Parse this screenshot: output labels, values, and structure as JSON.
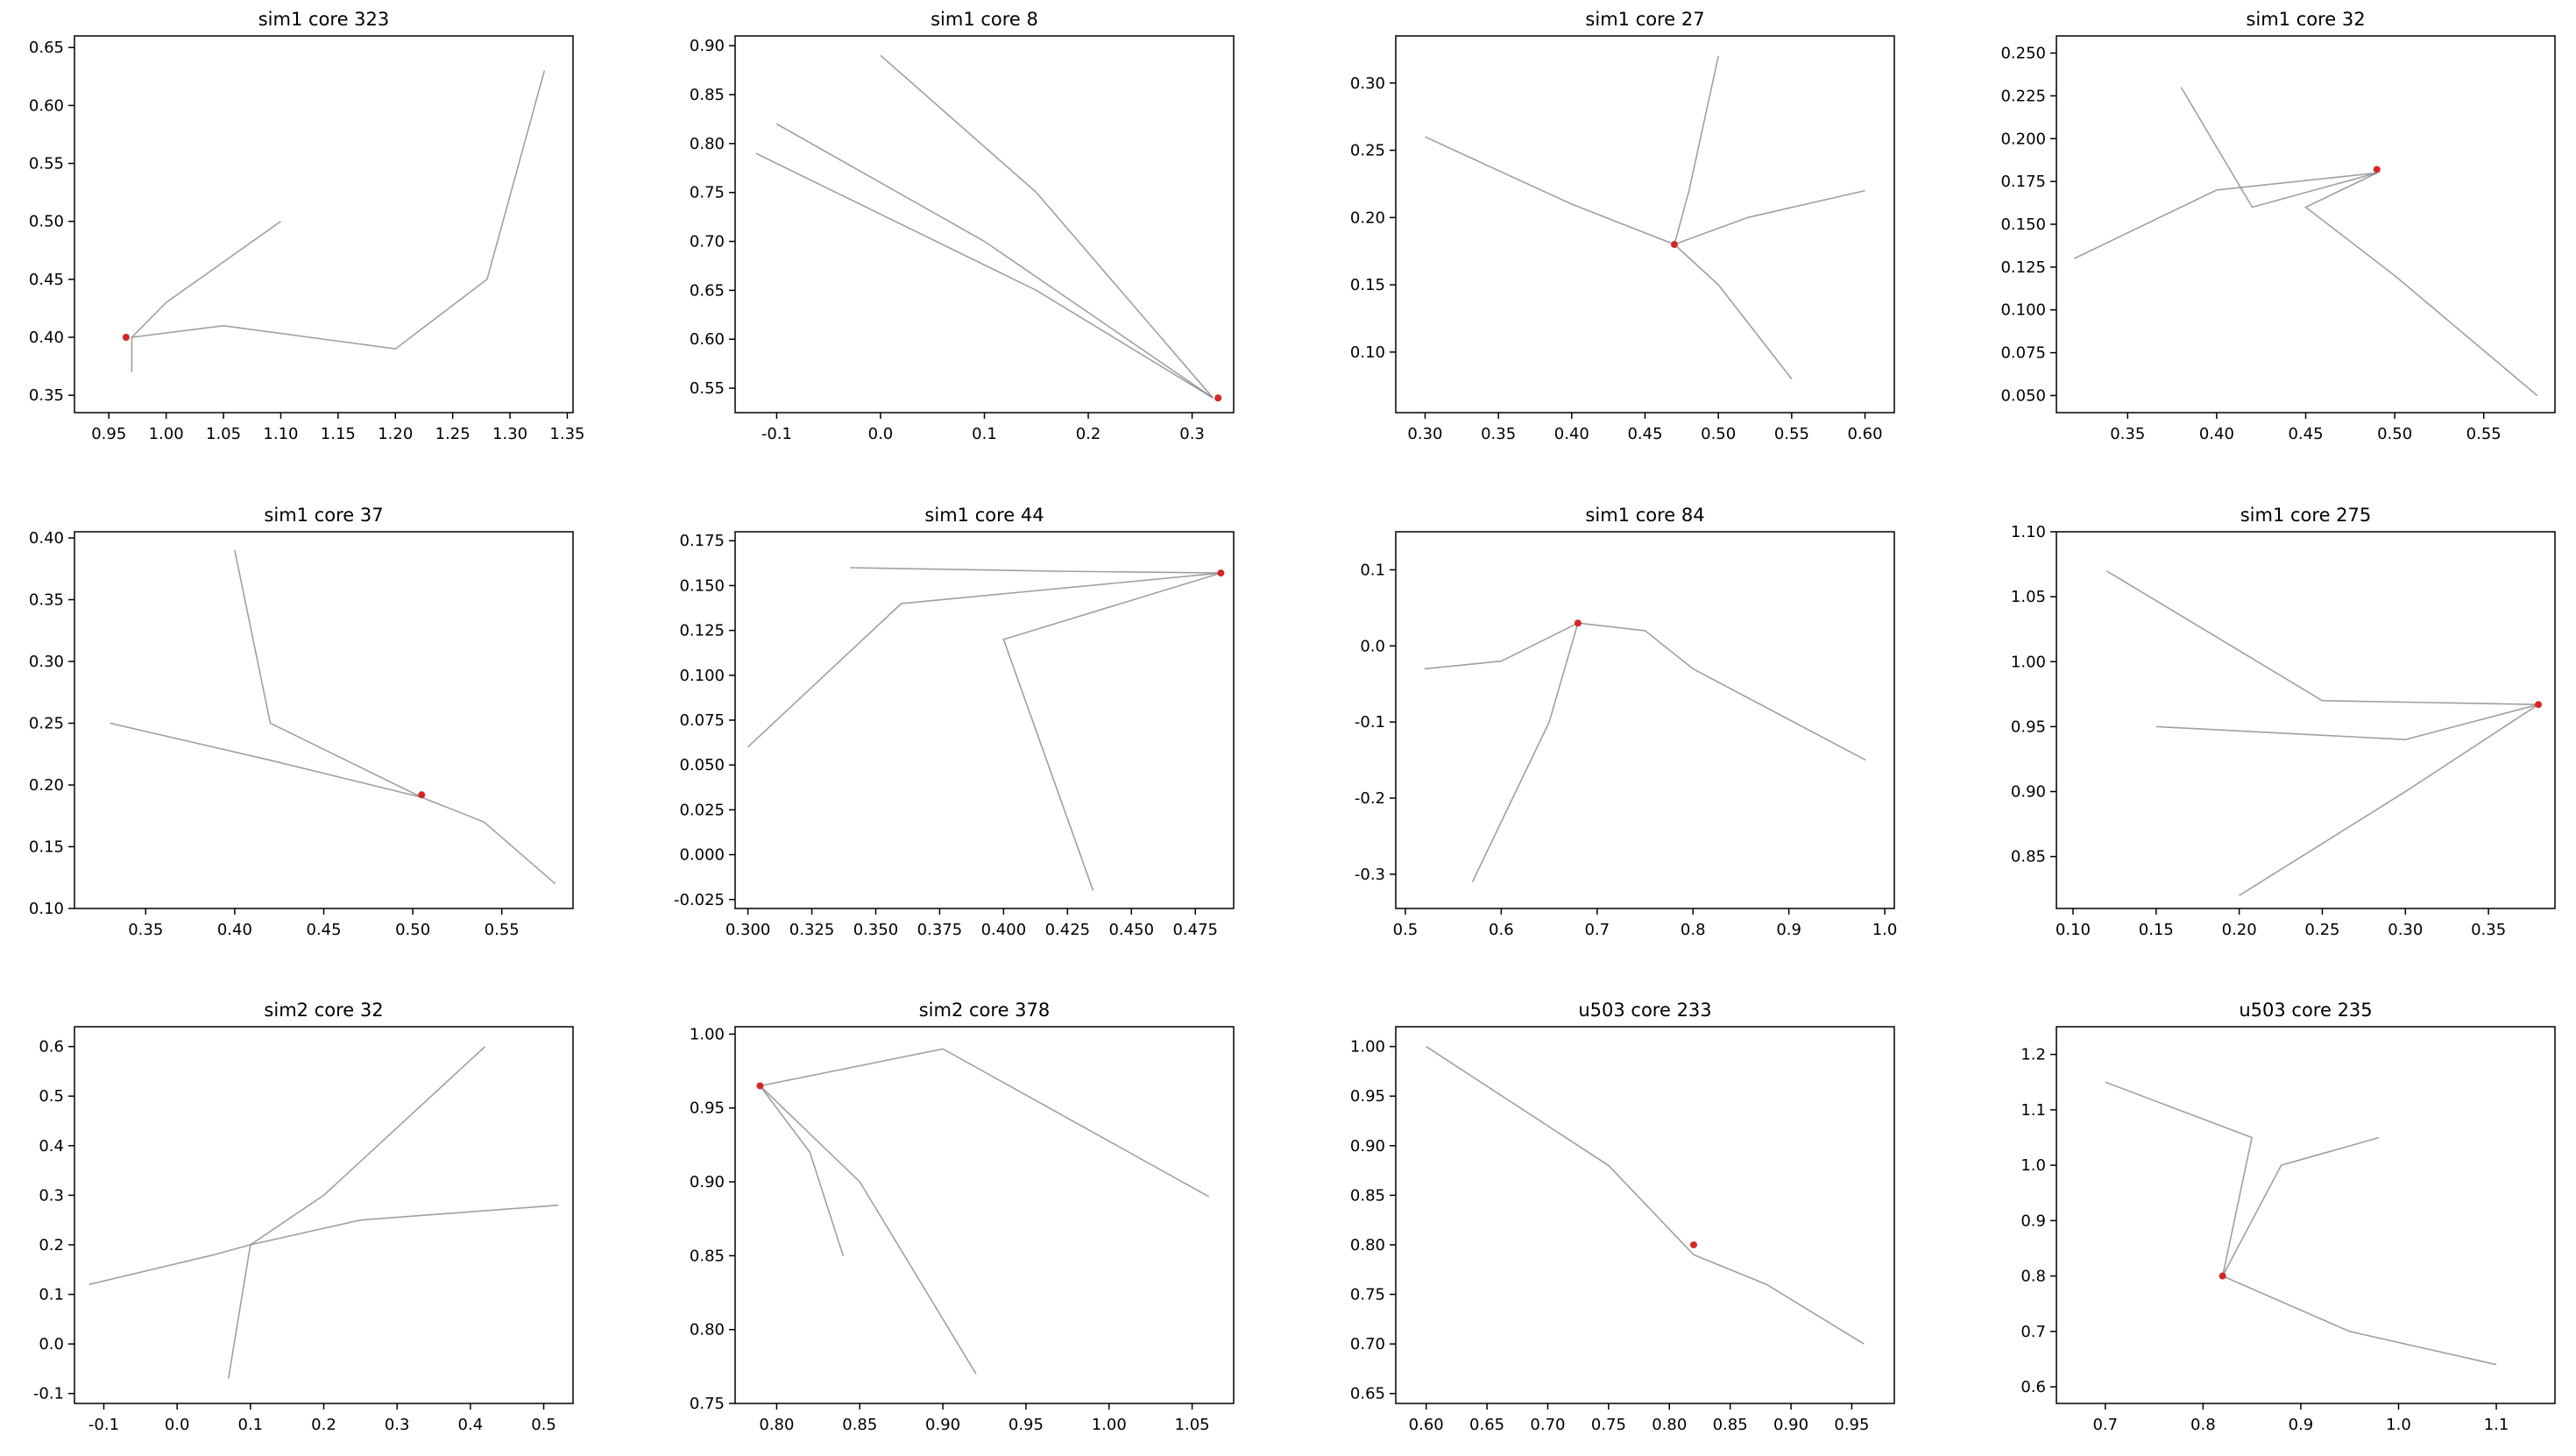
{
  "chart_data": [
    {
      "type": "line",
      "title": "sim1 core 323",
      "xlim": [
        0.92,
        1.355
      ],
      "ylim": [
        0.335,
        0.66
      ],
      "xticks": [
        0.95,
        {
          "value": 1.0,
          "label": "1.00"
        },
        1.05,
        {
          "value": 1.1,
          "label": "1.10"
        },
        1.15,
        {
          "value": 1.2,
          "label": "1.20"
        },
        1.25,
        {
          "value": 1.3,
          "label": "1.30"
        },
        1.35
      ],
      "yticks": [
        0.35,
        {
          "value": 0.4,
          "label": "0.40"
        },
        0.45,
        {
          "value": 0.5,
          "label": "0.50"
        },
        0.55,
        {
          "value": 0.6,
          "label": "0.60"
        },
        0.65
      ],
      "series": [
        {
          "color": "#888888",
          "x": [
            1.33,
            1.28,
            1.2,
            1.05,
            0.97
          ],
          "values": [
            0.63,
            0.45,
            0.39,
            0.41,
            0.4
          ]
        },
        {
          "color": "#888888",
          "x": [
            1.1,
            1.0,
            0.97
          ],
          "values": [
            0.5,
            0.43,
            0.4
          ]
        },
        {
          "color": "#888888",
          "x": [
            0.97,
            0.97
          ],
          "values": [
            0.37,
            0.4
          ]
        },
        {
          "color": "#d62728",
          "marker": "dot",
          "x": [
            0.965
          ],
          "values": [
            0.4
          ]
        }
      ]
    },
    {
      "type": "line",
      "title": "sim1 core 8",
      "xlim": [
        -0.14,
        0.34
      ],
      "ylim": [
        0.525,
        0.91
      ],
      "xticks": [
        -0.1,
        {
          "value": 0.0,
          "label": "0.0"
        },
        0.1,
        0.2,
        0.3
      ],
      "yticks": [
        0.55,
        {
          "value": 0.6,
          "label": "0.60"
        },
        0.65,
        {
          "value": 0.7,
          "label": "0.70"
        },
        0.75,
        {
          "value": 0.8,
          "label": "0.80"
        },
        0.85,
        {
          "value": 0.9,
          "label": "0.90"
        }
      ],
      "series": [
        {
          "color": "#888888",
          "x": [
            -0.1,
            0.1,
            0.32
          ],
          "values": [
            0.82,
            0.7,
            0.54
          ]
        },
        {
          "color": "#888888",
          "x": [
            0.0,
            0.15,
            0.32
          ],
          "values": [
            0.89,
            0.75,
            0.54
          ]
        },
        {
          "color": "#888888",
          "x": [
            -0.12,
            0.15,
            0.32
          ],
          "values": [
            0.79,
            0.65,
            0.54
          ]
        },
        {
          "color": "#d62728",
          "marker": "dot",
          "x": [
            0.325
          ],
          "values": [
            0.54
          ]
        }
      ]
    },
    {
      "type": "line",
      "title": "sim1 core 27",
      "xlim": [
        0.28,
        0.62
      ],
      "ylim": [
        0.055,
        0.335
      ],
      "xticks": [
        {
          "value": 0.3,
          "label": "0.30"
        },
        0.35,
        {
          "value": 0.4,
          "label": "0.40"
        },
        0.45,
        {
          "value": 0.5,
          "label": "0.50"
        },
        0.55,
        {
          "value": 0.6,
          "label": "0.60"
        }
      ],
      "yticks": [
        {
          "value": 0.1,
          "label": "0.10"
        },
        0.15,
        {
          "value": 0.2,
          "label": "0.20"
        },
        0.25,
        {
          "value": 0.3,
          "label": "0.30"
        }
      ],
      "series": [
        {
          "color": "#888888",
          "x": [
            0.3,
            0.4,
            0.47
          ],
          "values": [
            0.26,
            0.21,
            0.18
          ]
        },
        {
          "color": "#888888",
          "x": [
            0.5,
            0.48,
            0.47
          ],
          "values": [
            0.32,
            0.22,
            0.18
          ]
        },
        {
          "color": "#888888",
          "x": [
            0.6,
            0.52,
            0.47
          ],
          "values": [
            0.22,
            0.2,
            0.18
          ]
        },
        {
          "color": "#888888",
          "x": [
            0.55,
            0.5,
            0.47
          ],
          "values": [
            0.08,
            0.15,
            0.18
          ]
        },
        {
          "color": "#d62728",
          "marker": "dot",
          "x": [
            0.47
          ],
          "values": [
            0.18
          ]
        }
      ]
    },
    {
      "type": "line",
      "title": "sim1 core 32",
      "xlim": [
        0.31,
        0.59
      ],
      "ylim": [
        0.04,
        0.26
      ],
      "xticks": [
        0.35,
        {
          "value": 0.4,
          "label": "0.40"
        },
        0.45,
        {
          "value": 0.5,
          "label": "0.50"
        },
        0.55
      ],
      "yticks": [
        {
          "value": 0.05,
          "label": "0.050"
        },
        0.075,
        {
          "value": 0.1,
          "label": "0.100"
        },
        0.125,
        {
          "value": 0.15,
          "label": "0.150"
        },
        0.175,
        {
          "value": 0.2,
          "label": "0.200"
        },
        0.225,
        {
          "value": 0.25,
          "label": "0.250"
        }
      ],
      "series": [
        {
          "color": "#888888",
          "x": [
            0.32,
            0.4,
            0.49
          ],
          "values": [
            0.13,
            0.17,
            0.18
          ]
        },
        {
          "color": "#888888",
          "x": [
            0.58,
            0.5,
            0.45,
            0.49
          ],
          "values": [
            0.05,
            0.12,
            0.16,
            0.18
          ]
        },
        {
          "color": "#888888",
          "x": [
            0.38,
            0.42,
            0.49
          ],
          "values": [
            0.23,
            0.16,
            0.18
          ]
        },
        {
          "color": "#d62728",
          "marker": "dot",
          "x": [
            0.49
          ],
          "values": [
            0.182
          ]
        }
      ]
    },
    {
      "type": "line",
      "title": "sim1 core 37",
      "xlim": [
        0.31,
        0.59
      ],
      "ylim": [
        0.1,
        0.405
      ],
      "xticks": [
        0.35,
        {
          "value": 0.4,
          "label": "0.40"
        },
        0.45,
        {
          "value": 0.5,
          "label": "0.50"
        },
        0.55
      ],
      "yticks": [
        {
          "value": 0.1,
          "label": "0.10"
        },
        0.15,
        {
          "value": 0.2,
          "label": "0.20"
        },
        0.25,
        {
          "value": 0.3,
          "label": "0.30"
        },
        0.35,
        {
          "value": 0.4,
          "label": "0.40"
        }
      ],
      "series": [
        {
          "color": "#888888",
          "x": [
            0.33,
            0.42,
            0.505
          ],
          "values": [
            0.25,
            0.22,
            0.19
          ]
        },
        {
          "color": "#888888",
          "x": [
            0.4,
            0.42,
            0.505
          ],
          "values": [
            0.39,
            0.25,
            0.19
          ]
        },
        {
          "color": "#888888",
          "x": [
            0.58,
            0.54,
            0.505
          ],
          "values": [
            0.12,
            0.17,
            0.19
          ]
        },
        {
          "color": "#d62728",
          "marker": "dot",
          "x": [
            0.505
          ],
          "values": [
            0.192
          ]
        }
      ]
    },
    {
      "type": "line",
      "title": "sim1 core 44",
      "xlim": [
        0.295,
        0.49
      ],
      "ylim": [
        -0.03,
        0.18
      ],
      "xticks": [
        {
          "value": 0.3,
          "label": "0.300"
        },
        0.325,
        {
          "value": 0.35,
          "label": "0.350"
        },
        0.375,
        {
          "value": 0.4,
          "label": "0.400"
        },
        0.425,
        {
          "value": 0.45,
          "label": "0.450"
        },
        0.475
      ],
      "yticks": [
        -0.025,
        {
          "value": 0.0,
          "label": "0.000"
        },
        0.025,
        {
          "value": 0.05,
          "label": "0.050"
        },
        0.075,
        {
          "value": 0.1,
          "label": "0.100"
        },
        0.125,
        {
          "value": 0.15,
          "label": "0.150"
        },
        0.175
      ],
      "series": [
        {
          "color": "#888888",
          "x": [
            0.3,
            0.36,
            0.485
          ],
          "values": [
            0.06,
            0.14,
            0.157
          ]
        },
        {
          "color": "#888888",
          "x": [
            0.435,
            0.4,
            0.485
          ],
          "values": [
            -0.02,
            0.12,
            0.157
          ]
        },
        {
          "color": "#888888",
          "x": [
            0.34,
            0.42,
            0.485
          ],
          "values": [
            0.16,
            0.158,
            0.157
          ]
        },
        {
          "color": "#d62728",
          "marker": "dot",
          "x": [
            0.485
          ],
          "values": [
            0.157
          ]
        }
      ]
    },
    {
      "type": "line",
      "title": "sim1 core 84",
      "xlim": [
        0.49,
        1.01
      ],
      "ylim": [
        -0.345,
        0.15
      ],
      "xticks": [
        0.5,
        0.6,
        0.7,
        0.8,
        0.9,
        {
          "value": 1.0,
          "label": "1.0"
        }
      ],
      "yticks": [
        -0.3,
        -0.2,
        -0.1,
        {
          "value": 0.0,
          "label": "0.0"
        },
        0.1
      ],
      "series": [
        {
          "color": "#888888",
          "x": [
            0.52,
            0.6,
            0.68
          ],
          "values": [
            -0.03,
            -0.02,
            0.03
          ]
        },
        {
          "color": "#888888",
          "x": [
            0.57,
            0.65,
            0.68
          ],
          "values": [
            -0.31,
            -0.1,
            0.03
          ]
        },
        {
          "color": "#888888",
          "x": [
            0.98,
            0.8,
            0.75,
            0.68
          ],
          "values": [
            -0.15,
            -0.03,
            0.02,
            0.03
          ]
        },
        {
          "color": "#d62728",
          "marker": "dot",
          "x": [
            0.68
          ],
          "values": [
            0.03
          ]
        }
      ]
    },
    {
      "type": "line",
      "title": "sim1 core 275",
      "xlim": [
        0.09,
        0.39
      ],
      "ylim": [
        0.81,
        1.1
      ],
      "xticks": [
        {
          "value": 0.1,
          "label": "0.10"
        },
        0.15,
        {
          "value": 0.2,
          "label": "0.20"
        },
        0.25,
        {
          "value": 0.3,
          "label": "0.30"
        },
        0.35
      ],
      "yticks": [
        0.85,
        {
          "value": 0.9,
          "label": "0.90"
        },
        0.95,
        {
          "value": 1.0,
          "label": "1.00"
        },
        1.05,
        {
          "value": 1.1,
          "label": "1.10"
        }
      ],
      "series": [
        {
          "color": "#888888",
          "x": [
            0.12,
            0.25,
            0.38
          ],
          "values": [
            1.07,
            0.97,
            0.967
          ]
        },
        {
          "color": "#888888",
          "x": [
            0.2,
            0.3,
            0.38
          ],
          "values": [
            0.82,
            0.9,
            0.967
          ]
        },
        {
          "color": "#888888",
          "x": [
            0.15,
            0.3,
            0.38
          ],
          "values": [
            0.95,
            0.94,
            0.967
          ]
        },
        {
          "color": "#d62728",
          "marker": "dot",
          "x": [
            0.38
          ],
          "values": [
            0.967
          ]
        }
      ]
    },
    {
      "type": "line",
      "title": "sim2 core 32",
      "xlim": [
        -0.14,
        0.54
      ],
      "ylim": [
        -0.12,
        0.64
      ],
      "xticks": [
        -0.1,
        {
          "value": 0.0,
          "label": "0.0"
        },
        0.1,
        0.2,
        0.3,
        0.4,
        0.5
      ],
      "yticks": [
        -0.1,
        {
          "value": 0.0,
          "label": "0.0"
        },
        0.1,
        0.2,
        0.3,
        0.4,
        0.5,
        0.6
      ],
      "series": [
        {
          "color": "#888888",
          "x": [
            -0.12,
            0.05,
            0.1
          ],
          "values": [
            0.12,
            0.18,
            0.2
          ]
        },
        {
          "color": "#888888",
          "x": [
            0.42,
            0.2,
            0.1
          ],
          "values": [
            0.6,
            0.3,
            0.2
          ]
        },
        {
          "color": "#888888",
          "x": [
            0.52,
            0.25,
            0.1
          ],
          "values": [
            0.28,
            0.25,
            0.2
          ]
        },
        {
          "color": "#888888",
          "x": [
            0.07,
            0.1
          ],
          "values": [
            -0.07,
            0.2
          ]
        }
      ]
    },
    {
      "type": "line",
      "title": "sim2 core 378",
      "xlim": [
        0.775,
        1.075
      ],
      "ylim": [
        0.75,
        1.005
      ],
      "xticks": [
        {
          "value": 0.8,
          "label": "0.80"
        },
        0.85,
        {
          "value": 0.9,
          "label": "0.90"
        },
        0.95,
        {
          "value": 1.0,
          "label": "1.00"
        },
        1.05
      ],
      "yticks": [
        0.75,
        {
          "value": 0.8,
          "label": "0.80"
        },
        0.85,
        {
          "value": 0.9,
          "label": "0.90"
        },
        0.95,
        {
          "value": 1.0,
          "label": "1.00"
        }
      ],
      "series": [
        {
          "color": "#888888",
          "x": [
            1.06,
            0.9,
            0.79
          ],
          "values": [
            0.89,
            0.99,
            0.965
          ]
        },
        {
          "color": "#888888",
          "x": [
            0.84,
            0.82,
            0.79
          ],
          "values": [
            0.85,
            0.92,
            0.965
          ]
        },
        {
          "color": "#888888",
          "x": [
            0.92,
            0.85,
            0.79
          ],
          "values": [
            0.77,
            0.9,
            0.965
          ]
        },
        {
          "color": "#d62728",
          "marker": "dot",
          "x": [
            0.79
          ],
          "values": [
            0.965
          ]
        }
      ]
    },
    {
      "type": "line",
      "title": "u503 core 233",
      "xlim": [
        0.575,
        0.985
      ],
      "ylim": [
        0.64,
        1.02
      ],
      "xticks": [
        {
          "value": 0.6,
          "label": "0.60"
        },
        0.65,
        {
          "value": 0.7,
          "label": "0.70"
        },
        0.75,
        {
          "value": 0.8,
          "label": "0.80"
        },
        0.85,
        {
          "value": 0.9,
          "label": "0.90"
        },
        0.95
      ],
      "yticks": [
        0.65,
        {
          "value": 0.7,
          "label": "0.70"
        },
        0.75,
        {
          "value": 0.8,
          "label": "0.80"
        },
        0.85,
        {
          "value": 0.9,
          "label": "0.90"
        },
        0.95,
        {
          "value": 1.0,
          "label": "1.00"
        }
      ],
      "series": [
        {
          "color": "#888888",
          "x": [
            0.6,
            0.75,
            0.82
          ],
          "values": [
            1.0,
            0.88,
            0.79
          ]
        },
        {
          "color": "#888888",
          "x": [
            0.96,
            0.88,
            0.82
          ],
          "values": [
            0.7,
            0.76,
            0.79
          ]
        },
        {
          "color": "#d62728",
          "marker": "dot",
          "x": [
            0.82
          ],
          "values": [
            0.8
          ]
        }
      ]
    },
    {
      "type": "line",
      "title": "u503 core 235",
      "xlim": [
        0.65,
        1.16
      ],
      "ylim": [
        0.57,
        1.25
      ],
      "xticks": [
        0.7,
        0.8,
        0.9,
        {
          "value": 1.0,
          "label": "1.0"
        },
        1.1
      ],
      "yticks": [
        0.6,
        0.7,
        0.8,
        0.9,
        {
          "value": 1.0,
          "label": "1.0"
        },
        1.1,
        1.2
      ],
      "series": [
        {
          "color": "#888888",
          "x": [
            0.7,
            0.85,
            0.82
          ],
          "values": [
            1.15,
            1.05,
            0.8
          ]
        },
        {
          "color": "#888888",
          "x": [
            1.1,
            0.95,
            0.82
          ],
          "values": [
            0.64,
            0.7,
            0.8
          ]
        },
        {
          "color": "#888888",
          "x": [
            0.98,
            0.88,
            0.82
          ],
          "values": [
            1.05,
            1.0,
            0.8
          ]
        },
        {
          "color": "#d62728",
          "marker": "dot",
          "x": [
            0.82
          ],
          "values": [
            0.8
          ]
        }
      ]
    }
  ]
}
